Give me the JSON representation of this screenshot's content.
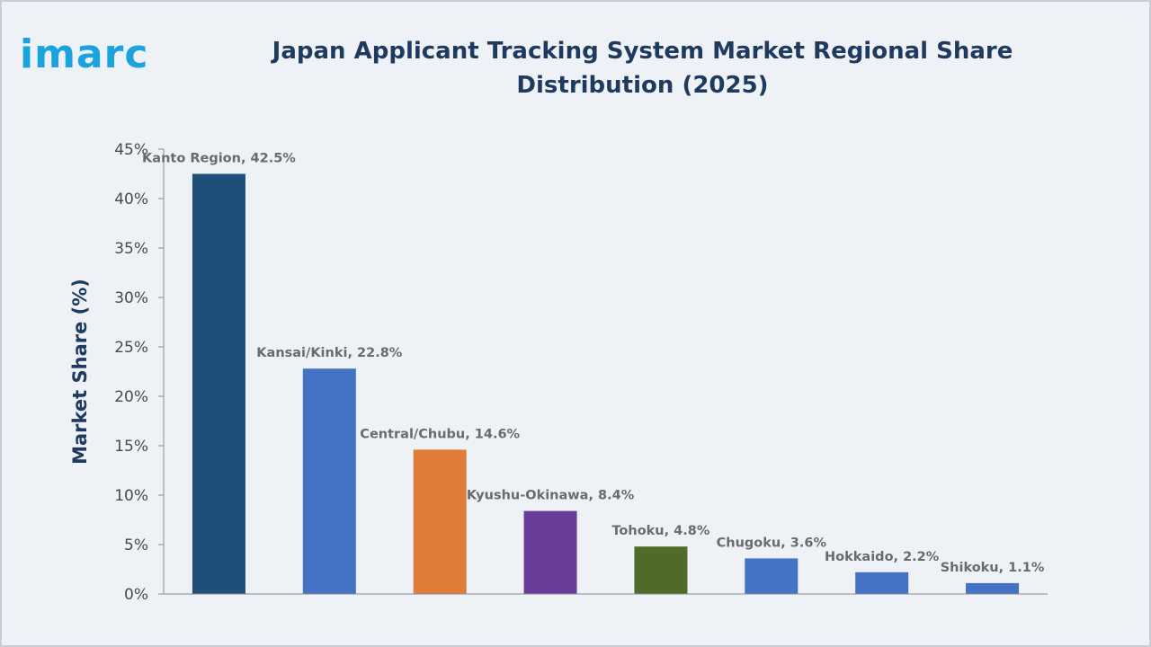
{
  "brand": {
    "logo_text": "imarc"
  },
  "colors": {
    "background": "#eef1f6",
    "title": "#1f3a5f",
    "logo": "#1aa3de"
  },
  "chart_data": {
    "type": "bar",
    "title": "Japan Applicant Tracking System Market Regional Share Distribution (2025)",
    "xlabel": "",
    "ylabel": "Market Share (%)",
    "ylim": [
      0,
      45
    ],
    "y_ticks": [
      "0%",
      "5%",
      "10%",
      "15%",
      "20%",
      "25%",
      "30%",
      "35%",
      "40%",
      "45%"
    ],
    "grid": false,
    "categories": [
      "Kanto Region",
      "Kansai/Kinki",
      "Central/Chubu",
      "Kyushu-Okinawa",
      "Tohoku",
      "Chugoku",
      "Hokkaido",
      "Shikoku"
    ],
    "values": [
      42.5,
      22.8,
      14.6,
      8.4,
      4.8,
      3.6,
      2.2,
      1.1
    ],
    "data_labels": [
      "Kanto Region, 42.5%",
      "Kansai/Kinki, 22.8%",
      "Central/Chubu, 14.6%",
      "Kyushu-Okinawa, 8.4%",
      "Tohoku, 4.8%",
      "Chugoku, 3.6%",
      "Hokkaido, 2.2%",
      "Shikoku, 1.1%"
    ],
    "bar_colors": [
      "#1f4e79",
      "#4472c4",
      "#e07b39",
      "#6a3d9a",
      "#4f6b2a",
      "#4472c4",
      "#4472c4",
      "#4472c4"
    ]
  }
}
